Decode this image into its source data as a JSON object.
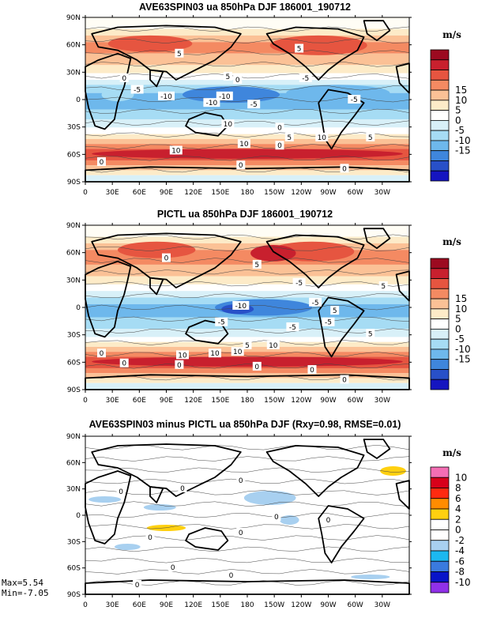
{
  "chart_data": [
    {
      "type": "heatmap",
      "title": "AVE63SPIN03 ua 850hPa DJF 186001_190712",
      "units": "m/s",
      "x_ticks": [
        "0",
        "30E",
        "60E",
        "90E",
        "120E",
        "150E",
        "180",
        "150W",
        "120W",
        "90W",
        "60W",
        "30W"
      ],
      "y_ticks": [
        "90N",
        "60N",
        "30N",
        "0",
        "30S",
        "60S",
        "90S"
      ],
      "colorbar": {
        "labels": [
          "15",
          "10",
          "5",
          "0",
          "-5",
          "-10",
          "-15"
        ],
        "colors": [
          "#9c0a20",
          "#c8202e",
          "#e65540",
          "#f48a62",
          "#fbc196",
          "#fdebc8",
          "#ffffff",
          "#d8f0f8",
          "#a6dcf4",
          "#6eb8ec",
          "#3f86dc",
          "#2850c8",
          "#1515c0"
        ]
      },
      "contour_labels": [
        "5",
        "0",
        "-5",
        "-10",
        "5",
        "0",
        "10",
        "5",
        "0",
        "10",
        "-5",
        "-10",
        "0",
        "5",
        "0",
        "-5",
        "-10",
        "5",
        "0",
        "10",
        "-5",
        "0",
        "10"
      ]
    },
    {
      "type": "heatmap",
      "title": "PICTL ua 850hPa DJF 186001_190712",
      "units": "m/s",
      "x_ticks": [
        "0",
        "30E",
        "60E",
        "90E",
        "120E",
        "150E",
        "180",
        "150W",
        "120W",
        "90W",
        "60W",
        "30W"
      ],
      "y_ticks": [
        "90N",
        "60N",
        "30N",
        "0",
        "30S",
        "60S",
        "90S"
      ],
      "colorbar": {
        "labels": [
          "15",
          "10",
          "5",
          "0",
          "-5",
          "-10",
          "-15"
        ],
        "colors": [
          "#9c0a20",
          "#c8202e",
          "#e65540",
          "#f48a62",
          "#fbc196",
          "#fdebc8",
          "#ffffff",
          "#d8f0f8",
          "#a6dcf4",
          "#6eb8ec",
          "#3f86dc",
          "#2850c8",
          "#1515c0"
        ]
      },
      "contour_labels": [
        "5",
        "0",
        "-5",
        "-5",
        "5",
        "10",
        "5",
        "0",
        "10",
        "0",
        "-5",
        "-10",
        "5",
        "0",
        "10",
        "5",
        "0",
        "-5",
        "10",
        "0",
        "-5",
        "0"
      ]
    },
    {
      "type": "heatmap",
      "title": "AVE63SPIN03 minus PICTL ua 850hPa DJF (Rxy=0.98, RMSE=0.01)",
      "units": "m/s",
      "x_ticks": [
        "0",
        "30E",
        "60E",
        "90E",
        "120E",
        "150E",
        "180",
        "150W",
        "120W",
        "90W",
        "60W",
        "30W"
      ],
      "y_ticks": [
        "90N",
        "60N",
        "30N",
        "0",
        "30S",
        "60S",
        "90S"
      ],
      "colorbar": {
        "labels": [
          "10",
          "8",
          "6",
          "4",
          "2",
          "0",
          "-2",
          "-4",
          "-6",
          "-8",
          "-10"
        ],
        "colors": [
          "#f46eb4",
          "#d8001a",
          "#ff2a10",
          "#ff8c00",
          "#ffd010",
          "#ffffff",
          "#ffffff",
          "#a8d0f0",
          "#1cb8f0",
          "#3a7ade",
          "#0814c8",
          "#9030e8"
        ]
      },
      "contour_labels": [
        "0",
        "0",
        "0",
        "0",
        "0",
        "0",
        "0",
        "0",
        "0",
        "0"
      ],
      "stats": {
        "max": "Max=5.54",
        "min": "Min=-7.05"
      }
    }
  ]
}
